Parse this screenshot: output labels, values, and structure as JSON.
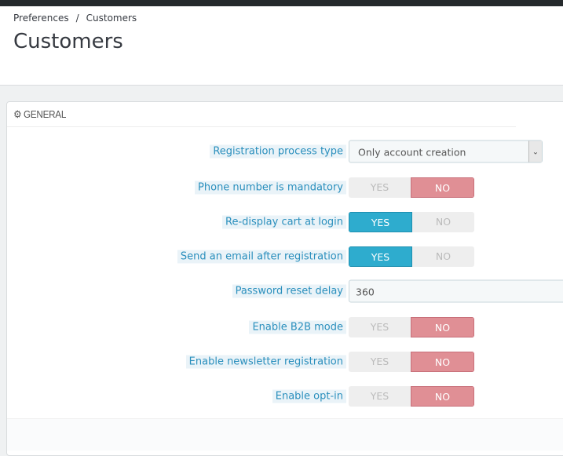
{
  "breadcrumb": {
    "items": [
      "Preferences",
      "Customers"
    ],
    "separator": "/"
  },
  "page_title": "Customers",
  "panel": {
    "title": "GENERAL",
    "icon": "cogs-icon"
  },
  "fields": [
    {
      "label": "Registration process type",
      "type": "select",
      "value": "Only account creation"
    },
    {
      "label": "Phone number is mandatory",
      "type": "toggle",
      "value": "NO"
    },
    {
      "label": "Re-display cart at login",
      "type": "toggle",
      "value": "YES"
    },
    {
      "label": "Send an email after registration",
      "type": "toggle",
      "value": "YES"
    },
    {
      "label": "Password reset delay",
      "type": "input",
      "value": "360"
    },
    {
      "label": "Enable B2B mode",
      "type": "toggle",
      "value": "NO"
    },
    {
      "label": "Enable newsletter registration",
      "type": "toggle",
      "value": "NO"
    },
    {
      "label": "Enable opt-in",
      "type": "toggle",
      "value": "NO"
    }
  ],
  "toggle_labels": {
    "yes": "YES",
    "no": "NO"
  },
  "colors": {
    "yes_active": "#2eacce",
    "no_active": "#e08f95",
    "label_text": "#2a8fbd"
  }
}
